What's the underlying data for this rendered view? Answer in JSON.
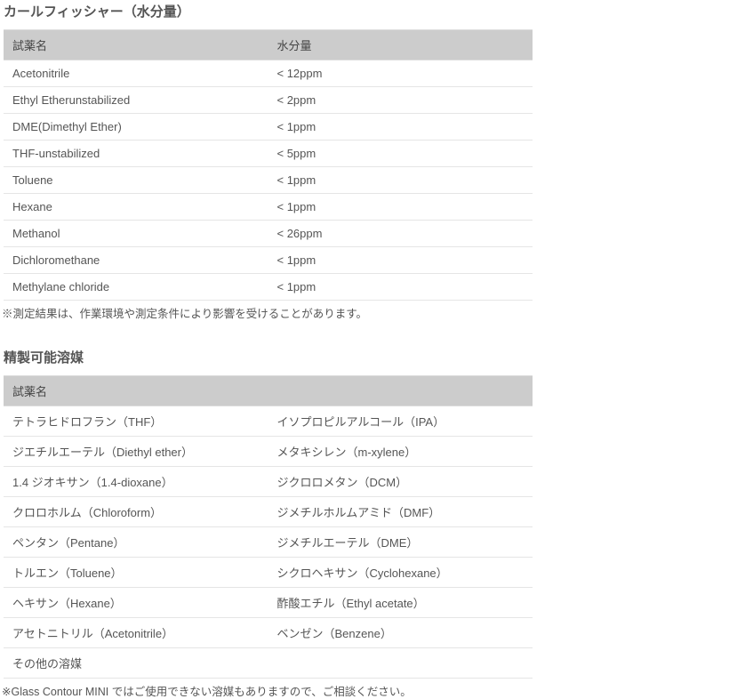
{
  "section1": {
    "title": "カールフィッシャー（水分量）",
    "headers": {
      "name": "試薬名",
      "moisture": "水分量"
    },
    "rows": [
      {
        "name": "Acetonitrile",
        "moisture": "< 12ppm"
      },
      {
        "name": "Ethyl Etherunstabilized",
        "moisture": "< 2ppm"
      },
      {
        "name": "DME(Dimethyl Ether)",
        "moisture": "< 1ppm"
      },
      {
        "name": "THF-unstabilized",
        "moisture": "< 5ppm"
      },
      {
        "name": "Toluene",
        "moisture": "< 1ppm"
      },
      {
        "name": "Hexane",
        "moisture": "< 1ppm"
      },
      {
        "name": "Methanol",
        "moisture": "< 26ppm"
      },
      {
        "name": "Dichloromethane",
        "moisture": "< 1ppm"
      },
      {
        "name": "Methylane chloride",
        "moisture": "< 1ppm"
      }
    ],
    "note": "※測定結果は、作業環境や測定条件により影響を受けることがあります。"
  },
  "section2": {
    "title": "精製可能溶媒",
    "header": "試薬名",
    "rows": [
      {
        "left": "テトラヒドロフラン（THF）",
        "right": "イソプロピルアルコール（IPA）"
      },
      {
        "left": "ジエチルエーテル（Diethyl ether）",
        "right": "メタキシレン（m-xylene）"
      },
      {
        "left": "1.4 ジオキサン（1.4-dioxane）",
        "right": "ジクロロメタン（DCM）"
      },
      {
        "left": "クロロホルム（Chloroform）",
        "right": "ジメチルホルムアミド（DMF）"
      },
      {
        "left": "ペンタン（Pentane）",
        "right": "ジメチルエーテル（DME）"
      },
      {
        "left": "トルエン（Toluene）",
        "right": "シクロヘキサン（Cyclohexane）"
      },
      {
        "left": "ヘキサン（Hexane）",
        "right": "酢酸エチル（Ethyl acetate）"
      },
      {
        "left": "アセトニトリル（Acetonitrile）",
        "right": "ベンゼン（Benzene）"
      },
      {
        "left": "その他の溶媒",
        "right": ""
      }
    ],
    "note": "※Glass Contour MINI ではご使用できない溶媒もありますので、ご相談ください。"
  }
}
